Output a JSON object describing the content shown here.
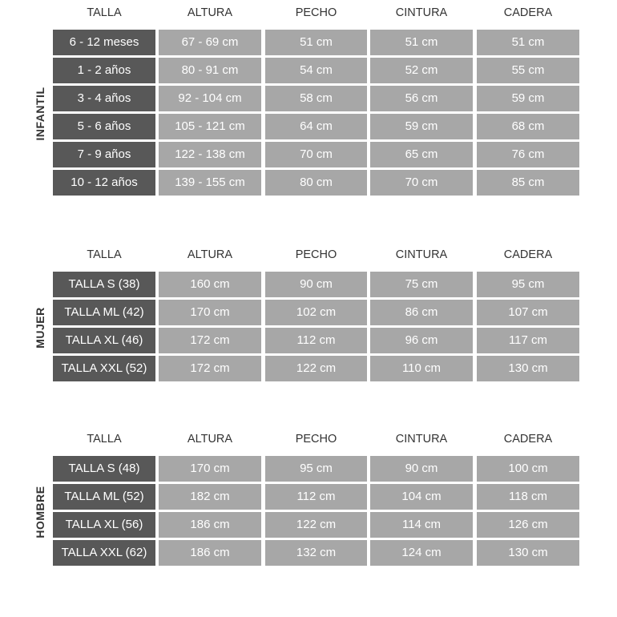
{
  "colors": {
    "label_cell": "#585858",
    "value_cell": "#a7a7a7",
    "text": "#ffffff"
  },
  "sections": [
    {
      "label": "INFANTIL",
      "headers": [
        "TALLA",
        "ALTURA",
        "PECHO",
        "CINTURA",
        "CADERA"
      ],
      "rows": [
        [
          "6 - 12 meses",
          "67 - 69 cm",
          "51 cm",
          "51 cm",
          "51 cm"
        ],
        [
          "1 - 2 años",
          "80 - 91 cm",
          "54 cm",
          "52 cm",
          "55 cm"
        ],
        [
          "3 - 4 años",
          "92 - 104 cm",
          "58 cm",
          "56 cm",
          "59 cm"
        ],
        [
          "5 - 6 años",
          "105 - 121 cm",
          "64 cm",
          "59 cm",
          "68 cm"
        ],
        [
          "7 - 9 años",
          "122 - 138 cm",
          "70 cm",
          "65 cm",
          "76 cm"
        ],
        [
          "10 - 12 años",
          "139 - 155 cm",
          "80 cm",
          "70 cm",
          "85 cm"
        ]
      ]
    },
    {
      "label": "MUJER",
      "headers": [
        "TALLA",
        "ALTURA",
        "PECHO",
        "CINTURA",
        "CADERA"
      ],
      "rows": [
        [
          "TALLA S (38)",
          "160 cm",
          "90 cm",
          "75 cm",
          "95 cm"
        ],
        [
          "TALLA ML (42)",
          "170 cm",
          "102 cm",
          "86 cm",
          "107 cm"
        ],
        [
          "TALLA XL (46)",
          "172 cm",
          "112 cm",
          "96 cm",
          "117 cm"
        ],
        [
          "TALLA XXL (52)",
          "172 cm",
          "122 cm",
          "110 cm",
          "130 cm"
        ]
      ]
    },
    {
      "label": "HOMBRE",
      "headers": [
        "TALLA",
        "ALTURA",
        "PECHO",
        "CINTURA",
        "CADERA"
      ],
      "rows": [
        [
          "TALLA S (48)",
          "170 cm",
          "95 cm",
          "90 cm",
          "100 cm"
        ],
        [
          "TALLA ML (52)",
          "182 cm",
          "112 cm",
          "104 cm",
          "118 cm"
        ],
        [
          "TALLA XL (56)",
          "186 cm",
          "122 cm",
          "114 cm",
          "126 cm"
        ],
        [
          "TALLA XXL (62)",
          "186 cm",
          "132 cm",
          "124 cm",
          "130 cm"
        ]
      ]
    }
  ]
}
